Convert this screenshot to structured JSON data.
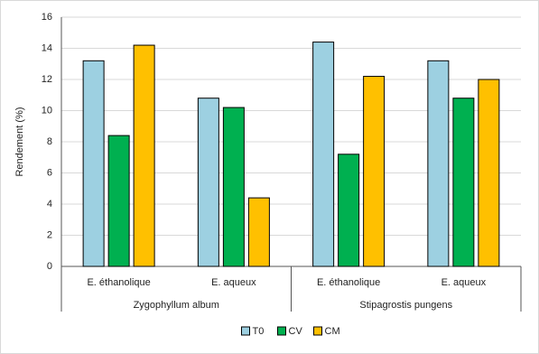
{
  "chart_data": {
    "type": "bar",
    "y_label": "Rendement (%)",
    "categories": [
      "E. éthanolique",
      "E. aqueux",
      "E. éthanolique",
      "E. aqueux"
    ],
    "groups": [
      "Zygophyllum album",
      "Stipagrostis pungens"
    ],
    "series": [
      {
        "name": "T0",
        "color": "#9dd0e1",
        "values": [
          13.2,
          10.8,
          14.4,
          13.2
        ]
      },
      {
        "name": "CV",
        "color": "#00b050",
        "values": [
          8.4,
          10.2,
          7.2,
          10.8
        ]
      },
      {
        "name": "CM",
        "color": "#ffc000",
        "values": [
          14.2,
          4.4,
          12.2,
          12.0
        ]
      }
    ],
    "ylim": [
      0,
      16
    ],
    "yticks": [
      0,
      2,
      4,
      6,
      8,
      10,
      12,
      14,
      16
    ],
    "grid": true,
    "legend": "bottom"
  }
}
